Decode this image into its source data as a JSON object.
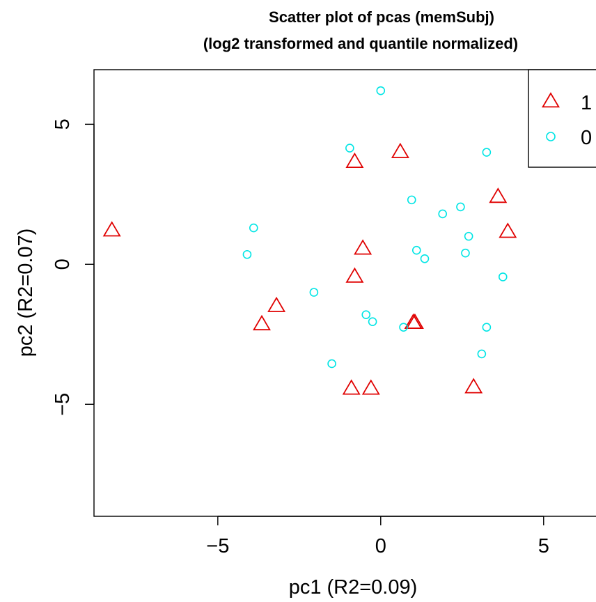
{
  "chart_data": {
    "type": "scatter",
    "title": "Scatter plot of pcas (memSubj)",
    "subtitle": "(log2 transformed and quantile normalized)",
    "xlabel": "pc1 (R2=0.09)",
    "ylabel": "pc2 (R2=0.07)",
    "xlim": [
      -8.8,
      6.8
    ],
    "ylim": [
      -9,
      6.95
    ],
    "xticks": [
      -5,
      0,
      5
    ],
    "xtick_labels": [
      "−5",
      "0",
      "5"
    ],
    "yticks": [
      -5,
      0,
      5
    ],
    "ytick_labels": [
      "−5",
      "0",
      "5"
    ],
    "grid": false,
    "legend": {
      "position": "top-right"
    },
    "series": [
      {
        "name": "1",
        "marker": "triangle",
        "color": "#e00000",
        "points": [
          [
            -8.25,
            1.2
          ],
          [
            -3.2,
            -1.5
          ],
          [
            -3.65,
            -2.15
          ],
          [
            -0.8,
            3.65
          ],
          [
            0.6,
            4.0
          ],
          [
            -0.55,
            0.55
          ],
          [
            -0.8,
            -0.45
          ],
          [
            1.05,
            -2.1
          ],
          [
            1.0,
            -2.1
          ],
          [
            -0.9,
            -4.45
          ],
          [
            -0.3,
            -4.45
          ],
          [
            2.85,
            -4.4
          ],
          [
            3.6,
            2.4
          ],
          [
            3.9,
            1.15
          ]
        ]
      },
      {
        "name": "0",
        "marker": "circle",
        "color": "#00e5e5",
        "points": [
          [
            0.0,
            6.2
          ],
          [
            -0.95,
            4.15
          ],
          [
            3.25,
            4.0
          ],
          [
            0.95,
            2.3
          ],
          [
            1.9,
            1.8
          ],
          [
            2.45,
            2.05
          ],
          [
            -3.9,
            1.3
          ],
          [
            -4.1,
            0.35
          ],
          [
            1.1,
            0.5
          ],
          [
            1.35,
            0.2
          ],
          [
            2.7,
            1.0
          ],
          [
            2.6,
            0.4
          ],
          [
            3.75,
            -0.45
          ],
          [
            -2.05,
            -1.0
          ],
          [
            -0.45,
            -1.8
          ],
          [
            -0.25,
            -2.05
          ],
          [
            0.7,
            -2.25
          ],
          [
            3.25,
            -2.25
          ],
          [
            -1.5,
            -3.55
          ],
          [
            3.1,
            -3.2
          ]
        ]
      }
    ]
  }
}
